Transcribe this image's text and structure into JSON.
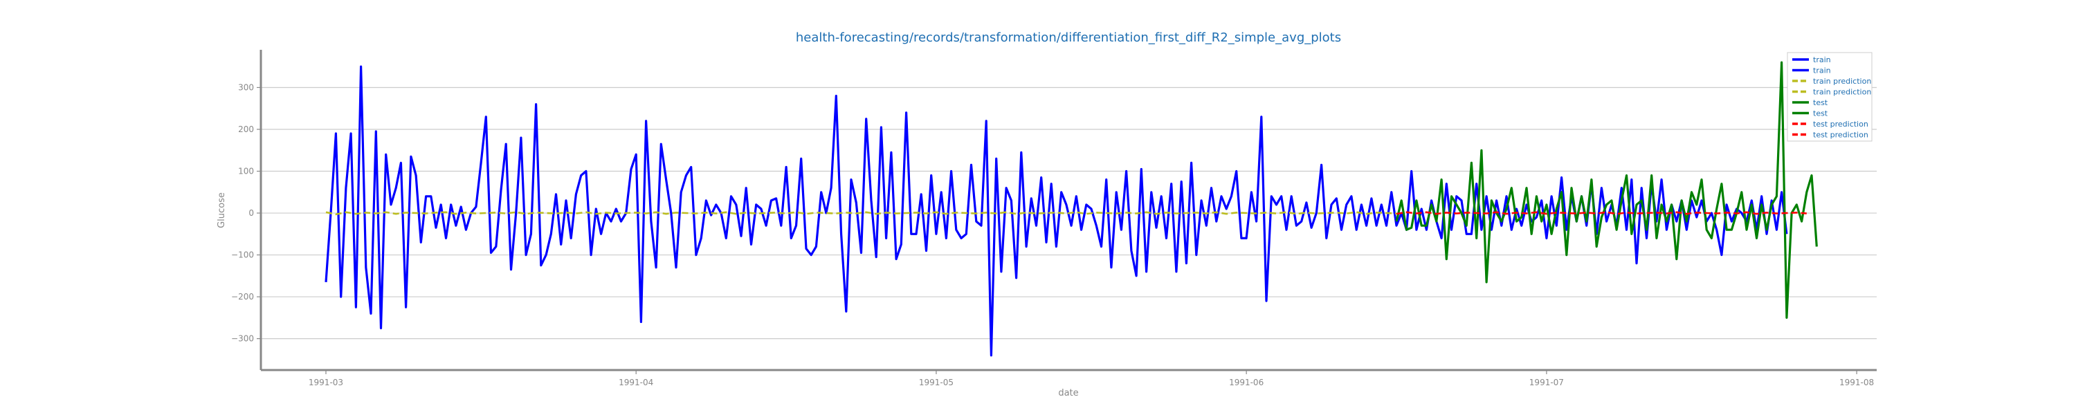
{
  "chart_data": {
    "type": "line",
    "title": "health-forecasting/records/transformation/differentiation_first_diff_R2_simple_avg_plots",
    "xlabel": "date",
    "ylabel": "Glucose",
    "x_ticks": [
      "1991-03",
      "1991-04",
      "1991-05",
      "1991-06",
      "1991-07",
      "1991-08"
    ],
    "x_tick_days": [
      0,
      31,
      61,
      92,
      122,
      153
    ],
    "x_range_days": [
      -6.5,
      155
    ],
    "ylim": [
      -375,
      390
    ],
    "y_ticks": [
      -300,
      -200,
      -100,
      0,
      100,
      200,
      300
    ],
    "y_tick_labels": [
      "−300",
      "−200",
      "−100",
      "0",
      "100",
      "200",
      "300"
    ],
    "grid": "horizontal",
    "legend_position": "top-right",
    "legend": [
      {
        "label": "train",
        "color": "#0000ff",
        "style": "solid"
      },
      {
        "label": "train",
        "color": "#0000ff",
        "style": "solid"
      },
      {
        "label": "train prediction",
        "color": "#bcbd22",
        "style": "dashed"
      },
      {
        "label": "train prediction",
        "color": "#bcbd22",
        "style": "dashed"
      },
      {
        "label": "test",
        "color": "#008000",
        "style": "solid"
      },
      {
        "label": "test",
        "color": "#008000",
        "style": "solid"
      },
      {
        "label": "test prediction",
        "color": "#ff0000",
        "style": "dashed"
      },
      {
        "label": "test prediction",
        "color": "#ff0000",
        "style": "dashed"
      }
    ],
    "series": [
      {
        "name": "train",
        "color": "#0000ff",
        "x_start": "1991-03-01",
        "x_step_days": 0.5,
        "values": [
          -165,
          5,
          190,
          -200,
          60,
          190,
          -225,
          350,
          -130,
          -240,
          195,
          -275,
          140,
          20,
          60,
          120,
          -225,
          135,
          90,
          -70,
          40,
          40,
          -35,
          20,
          -60,
          20,
          -30,
          15,
          -40,
          0,
          15,
          120,
          230,
          -95,
          -80,
          55,
          165,
          -135,
          0,
          180,
          -100,
          -50,
          260,
          -125,
          -100,
          -50,
          45,
          -75,
          30,
          -60,
          45,
          90,
          100,
          -100,
          10,
          -50,
          0,
          -20,
          10,
          -20,
          0,
          105,
          140,
          -260,
          220,
          -20,
          -130,
          165,
          80,
          0,
          -130,
          50,
          90,
          110,
          -100,
          -60,
          30,
          -5,
          20,
          0,
          -60,
          40,
          20,
          -55,
          60,
          -75,
          20,
          10,
          -30,
          30,
          35,
          -30,
          110,
          -60,
          -30,
          130,
          -85,
          -100,
          -80,
          50,
          0,
          60,
          280,
          -50,
          -235,
          80,
          25,
          -95,
          225,
          30,
          -105,
          205,
          -60,
          145,
          -110,
          -75,
          240,
          -50,
          -50,
          45,
          -90,
          90,
          -50,
          50,
          -60,
          100,
          -40,
          -60,
          -50,
          115,
          -20,
          -30,
          220,
          -340,
          130,
          -140,
          60,
          30,
          -155,
          145,
          -80,
          35,
          -30,
          85,
          -70,
          70,
          -80,
          50,
          20,
          -30,
          40,
          -40,
          20,
          10,
          -30,
          -80,
          80,
          -130,
          50,
          -40,
          100,
          -90,
          -150,
          105,
          -140,
          50,
          -35,
          40,
          -60,
          70,
          -140,
          75,
          -120,
          120,
          -100,
          30,
          -30,
          60,
          -20,
          40,
          10,
          40,
          100,
          -60,
          -60,
          50,
          -20,
          230,
          -210,
          40,
          20,
          40,
          -40,
          40,
          -30,
          -20,
          25,
          -35,
          0,
          115,
          -60,
          20,
          35,
          -40,
          20,
          40,
          -40,
          20,
          -30,
          35,
          -30,
          20,
          -30,
          50,
          -30,
          0,
          -40,
          100,
          -40,
          10,
          -40,
          30,
          -20,
          -60,
          70,
          -40,
          40,
          30,
          -50,
          -50,
          70,
          -40,
          40,
          -40,
          30,
          -30,
          40,
          -40,
          10,
          -30,
          20,
          -20,
          -10,
          30,
          -60,
          40,
          -30,
          85,
          -40,
          40,
          -20,
          40,
          -30,
          70,
          -50,
          60,
          -20,
          20,
          -30,
          60,
          -40,
          80,
          -120,
          60,
          -60,
          70,
          -20,
          80,
          -40,
          20,
          -20,
          30,
          -40,
          30,
          -10,
          30,
          -20,
          0,
          -40,
          -100,
          20,
          -20,
          10,
          0,
          -20,
          30,
          -40,
          40,
          -50,
          30,
          -40,
          50,
          -50
        ]
      },
      {
        "name": "train prediction",
        "color": "#bcbd22",
        "x_start": "1991-03-01",
        "x_step_days": 1,
        "values": [
          2,
          -3,
          2,
          -2,
          1,
          -1,
          2,
          -2,
          1,
          0,
          -1,
          1,
          2,
          -2,
          1,
          -1,
          0,
          1,
          -1,
          2,
          -2,
          1,
          0,
          -1,
          1,
          -1,
          2,
          -2,
          1,
          -1,
          0,
          1,
          -1,
          2,
          -2,
          1,
          0,
          -1,
          1,
          -1,
          2,
          -2,
          1,
          -1,
          0,
          1,
          -1,
          2,
          -2,
          1,
          0,
          -1,
          1,
          -1,
          2,
          -2,
          1,
          -1,
          0,
          1,
          -1,
          2,
          -2,
          1,
          0,
          -1,
          1,
          -1,
          2,
          -2,
          1,
          -1,
          0,
          1,
          -1,
          2,
          -2,
          1,
          0,
          -1,
          1,
          -1,
          2,
          -2,
          1,
          -1,
          0,
          1,
          -1,
          2,
          -2,
          1,
          0,
          -1,
          1,
          -1,
          2,
          -2,
          1,
          -1,
          0,
          1,
          -1,
          2,
          -2,
          1,
          0,
          -1
        ]
      },
      {
        "name": "test",
        "color": "#008000",
        "x_start": "1991-06-16",
        "x_step_days": 0.5,
        "values": [
          -20,
          30,
          -40,
          -35,
          30,
          -30,
          -30,
          20,
          -20,
          80,
          -110,
          40,
          20,
          0,
          -30,
          120,
          -60,
          150,
          -165,
          30,
          0,
          -20,
          10,
          60,
          -20,
          -10,
          60,
          -50,
          40,
          -20,
          20,
          -50,
          10,
          50,
          -100,
          60,
          -20,
          40,
          -20,
          80,
          -80,
          -10,
          20,
          30,
          -40,
          30,
          90,
          -50,
          20,
          30,
          -40,
          90,
          -60,
          20,
          -20,
          20,
          -110,
          30,
          -20,
          50,
          20,
          80,
          -40,
          -60,
          10,
          70,
          -40,
          -40,
          0,
          50,
          -40,
          20,
          -60,
          20,
          -40,
          20,
          40,
          360,
          -250,
          0,
          20,
          -20,
          50,
          90,
          -80
        ]
      },
      {
        "name": "test prediction",
        "color": "#ff0000",
        "x_start": "1991-06-16",
        "x_step_days": 1,
        "values": [
          -2,
          2,
          -1,
          2,
          -2,
          1,
          -1,
          1,
          0,
          -1,
          2,
          -2,
          1,
          -1,
          2,
          -2,
          1,
          0,
          -1,
          1,
          -1,
          2,
          -2,
          1,
          -1,
          0,
          1,
          -1,
          2,
          -2,
          1,
          0,
          -1,
          1,
          -1,
          2,
          -2,
          1,
          -1,
          0,
          1,
          -1
        ]
      }
    ]
  }
}
